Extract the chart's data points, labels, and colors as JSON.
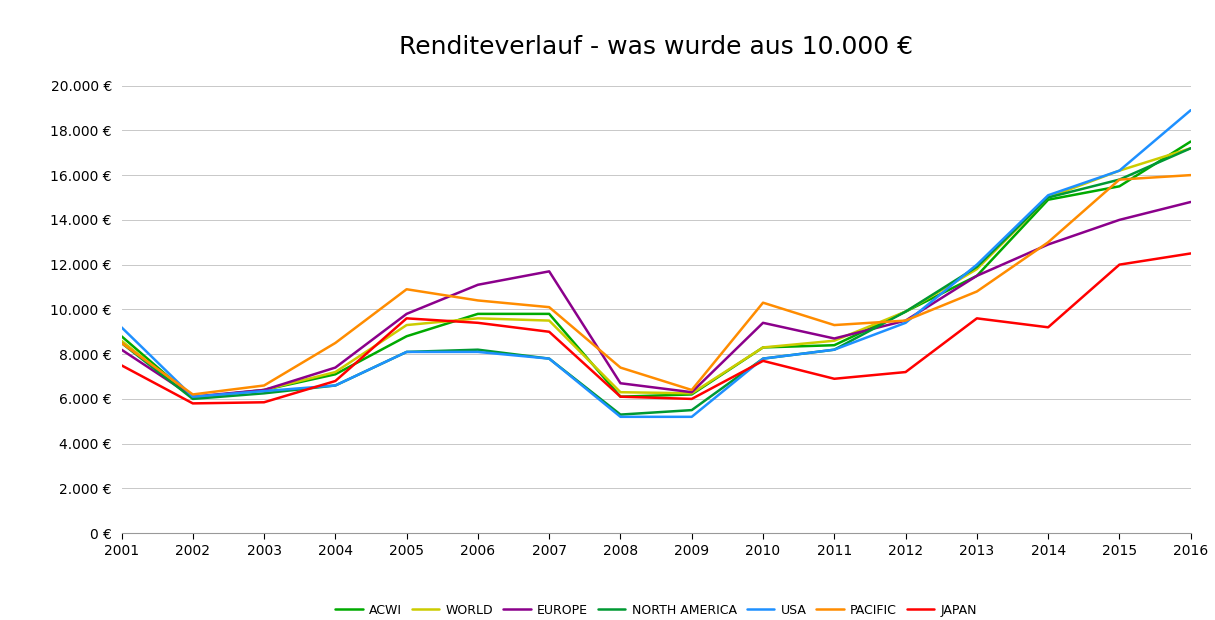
{
  "title": "Renditeverlauf - was wurde aus 10.000 €",
  "years": [
    2001,
    2002,
    2003,
    2004,
    2005,
    2006,
    2007,
    2008,
    2009,
    2010,
    2011,
    2012,
    2013,
    2014,
    2015,
    2016
  ],
  "series": {
    "ACWI": {
      "color": "#00AA00",
      "values": [
        8800,
        6050,
        6400,
        7100,
        8800,
        9800,
        9800,
        6100,
        6200,
        8300,
        8400,
        9900,
        11500,
        14900,
        15500,
        17500
      ]
    },
    "WORLD": {
      "color": "#CCCC00",
      "values": [
        8600,
        6050,
        6400,
        7200,
        9300,
        9600,
        9500,
        6300,
        6250,
        8300,
        8600,
        9900,
        11800,
        15000,
        16200,
        17200
      ]
    },
    "EUROPE": {
      "color": "#8B008B",
      "values": [
        8200,
        6100,
        6400,
        7400,
        9800,
        11100,
        11700,
        6700,
        6300,
        9400,
        8700,
        9500,
        11500,
        12900,
        14000,
        14800
      ]
    },
    "NORTH AMERICA": {
      "color": "#009933",
      "values": [
        8500,
        6000,
        6250,
        6600,
        8100,
        8200,
        7800,
        5300,
        5500,
        7800,
        8200,
        9900,
        11900,
        15000,
        15800,
        17200
      ]
    },
    "USA": {
      "color": "#1E90FF",
      "values": [
        9200,
        6100,
        6350,
        6600,
        8100,
        8100,
        7800,
        5200,
        5200,
        7800,
        8200,
        9400,
        12000,
        15100,
        16200,
        18900
      ]
    },
    "PACIFIC": {
      "color": "#FF8C00",
      "values": [
        8500,
        6200,
        6600,
        8500,
        10900,
        10400,
        10100,
        7400,
        6400,
        10300,
        9300,
        9500,
        10800,
        13000,
        15800,
        16000
      ]
    },
    "JAPAN": {
      "color": "#FF0000",
      "values": [
        7500,
        5800,
        5850,
        6800,
        9600,
        9400,
        9000,
        6100,
        6000,
        7700,
        6900,
        7200,
        9600,
        9200,
        12000,
        12500
      ]
    }
  },
  "ylim": [
    0,
    20500
  ],
  "yticks": [
    0,
    2000,
    4000,
    6000,
    8000,
    10000,
    12000,
    14000,
    16000,
    18000,
    20000
  ],
  "xlim_left": 2001,
  "xlim_right": 2016,
  "background_color": "#FFFFFF",
  "grid_color": "#C8C8C8",
  "title_fontsize": 18,
  "tick_fontsize": 10,
  "legend_fontsize": 9,
  "linewidth": 1.8
}
